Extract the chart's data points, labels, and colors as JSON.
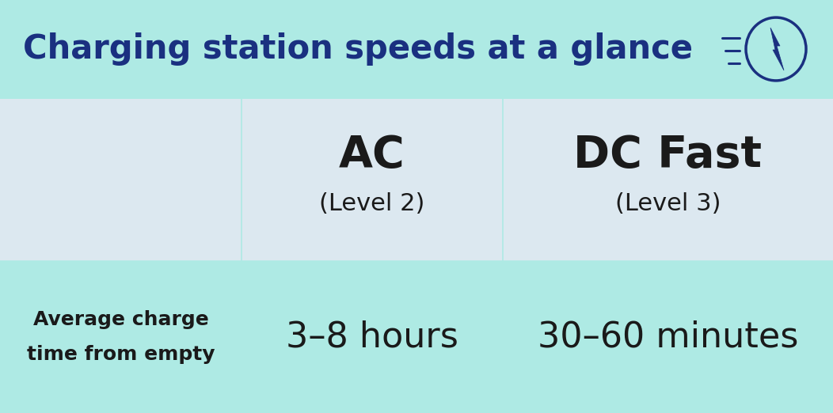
{
  "bg_color": "#aeeae4",
  "table_bg_color": "#dce8f0",
  "title_text": "Charging station speeds at a glance",
  "title_color": "#1a3080",
  "col1_header": "AC",
  "col1_subheader": "(Level 2)",
  "col2_header": "DC Fast",
  "col2_subheader": "(Level 3)",
  "row_label_line1": "Average charge",
  "row_label_line2": "time from empty",
  "col1_value": "3–8 hours",
  "col2_value": "30–60 minutes",
  "divider_color": "#aeeae4",
  "text_dark": "#1a1a1a",
  "text_label": "#1a2a1a",
  "icon_color": "#1a3080",
  "fig_width": 10.52,
  "fig_height": 5.22,
  "dpi": 100
}
